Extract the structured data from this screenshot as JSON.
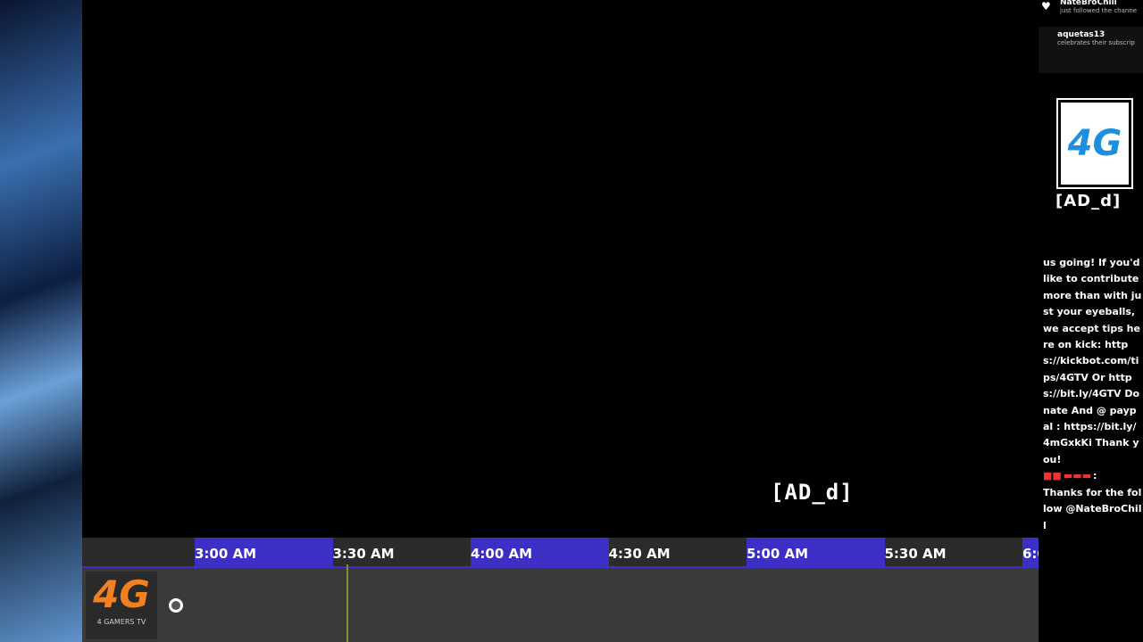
{
  "events": [
    {
      "user": "NateBroChill",
      "text": "just followed the channe"
    },
    {
      "user": "aquetas13",
      "text": "celebrates their subscrip"
    }
  ],
  "side_logo": {
    "mark": "4G",
    "name": "[AD_d]"
  },
  "chat": {
    "message": "us going! If you'd like to contribute more than with just your eyeballs, we accept tips here on kick: https://kickbot.com/tips/4GTV Or https://bit.ly/4GTV Donate And @ paypal : https://bit.ly/4mGxkKi Thank you!",
    "separator": ":",
    "reply": "Thanks for the follow @NateBroChill"
  },
  "watermark": "[AD_d]",
  "timeline": {
    "times": [
      "3:00 AM",
      "3:30 AM",
      "4:00 AM",
      "4:30 AM",
      "5:00 AM",
      "5:30 AM",
      "6:0"
    ]
  },
  "channel_logo": {
    "mark": "4G",
    "name": "4 GAMERS TV"
  }
}
